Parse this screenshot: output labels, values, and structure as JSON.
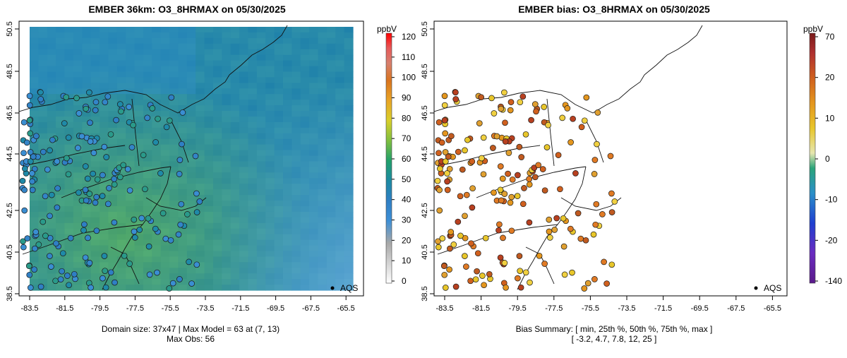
{
  "chart_data": [
    {
      "type": "map",
      "title": "EMBER 36km: O3_8HRMAX on 05/30/2025",
      "x_ticks": [
        "-83.5",
        "-81.5",
        "-79.5",
        "-77.5",
        "-75.5",
        "-73.5",
        "-71.5",
        "-69.5",
        "-67.5",
        "-65.5"
      ],
      "y_ticks": [
        "38.5",
        "40.5",
        "42.5",
        "44.5",
        "46.5",
        "48.5",
        "50.5"
      ],
      "xlim": [
        -84,
        -65
      ],
      "ylim": [
        38.3,
        50.6
      ],
      "colorbar": {
        "unit": "ppbV",
        "ticks": [
          "0",
          "10",
          "20",
          "30",
          "40",
          "50",
          "60",
          "70",
          "80",
          "90",
          "100",
          "110",
          "120"
        ],
        "range": [
          0,
          122
        ]
      },
      "legend_label": "AQS",
      "caption_line1": "Domain size: 37x47 | Max Model = 63 at (7, 13)",
      "caption_line2": "Max Obs: 56"
    },
    {
      "type": "map",
      "title": "EMBER bias: O3_8HRMAX on 05/30/2025",
      "x_ticks": [
        "-83.5",
        "-81.5",
        "-79.5",
        "-77.5",
        "-75.5",
        "-73.5",
        "-71.5",
        "-69.5",
        "-67.5",
        "-65.5"
      ],
      "y_ticks": [
        "38.5",
        "40.5",
        "42.5",
        "44.5",
        "46.5",
        "48.5",
        "50.5"
      ],
      "xlim": [
        -84,
        -65
      ],
      "ylim": [
        38.3,
        50.6
      ],
      "colorbar": {
        "unit": "ppbV",
        "ticks": [
          "-140",
          "-20",
          "-10",
          "0",
          "10",
          "20",
          "70"
        ],
        "range": [
          -140,
          70
        ]
      },
      "legend_label": "AQS",
      "caption_line1": "Bias Summary: [ min, 25th %, 50th %, 75th %, max ]",
      "caption_line2": "[ -3.2,   4.7,   7.8,   12,   25 ]"
    }
  ]
}
